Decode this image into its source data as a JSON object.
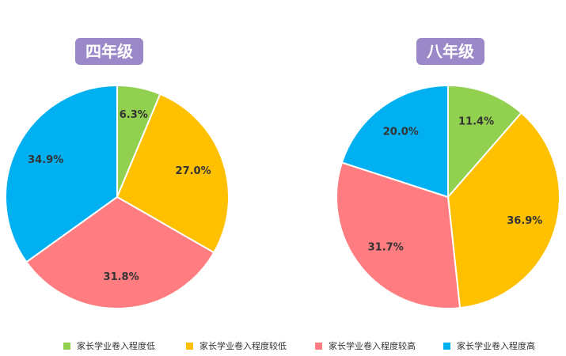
{
  "legend": [
    {
      "label": "家长学业卷入程度低",
      "color": "#92d050"
    },
    {
      "label": "家长学业卷入程度较低",
      "color": "#ffc000"
    },
    {
      "label": "家长学业卷入程度较高",
      "color": "#ff7c80"
    },
    {
      "label": "家长学业卷入程度高",
      "color": "#00b0f0"
    }
  ],
  "chart_data": [
    {
      "type": "pie",
      "title": "四年级",
      "categories": [
        "家长学业卷入程度低",
        "家长学业卷入程度较低",
        "家长学业卷入程度较高",
        "家长学业卷入程度高"
      ],
      "values": [
        6.3,
        27.0,
        31.8,
        34.9
      ],
      "labels": [
        "6.3%",
        "27.0%",
        "31.8%",
        "34.9%"
      ],
      "colors": [
        "#92d050",
        "#ffc000",
        "#ff7c80",
        "#00b0f0"
      ],
      "legend_position": "bottom"
    },
    {
      "type": "pie",
      "title": "八年级",
      "categories": [
        "家长学业卷入程度低",
        "家长学业卷入程度较低",
        "家长学业卷入程度较高",
        "家长学业卷入程度高"
      ],
      "values": [
        11.4,
        36.9,
        31.7,
        20.0
      ],
      "labels": [
        "11.4%",
        "36.9%",
        "31.7%",
        "20.0%"
      ],
      "colors": [
        "#92d050",
        "#ffc000",
        "#ff7c80",
        "#00b0f0"
      ],
      "legend_position": "bottom"
    }
  ]
}
